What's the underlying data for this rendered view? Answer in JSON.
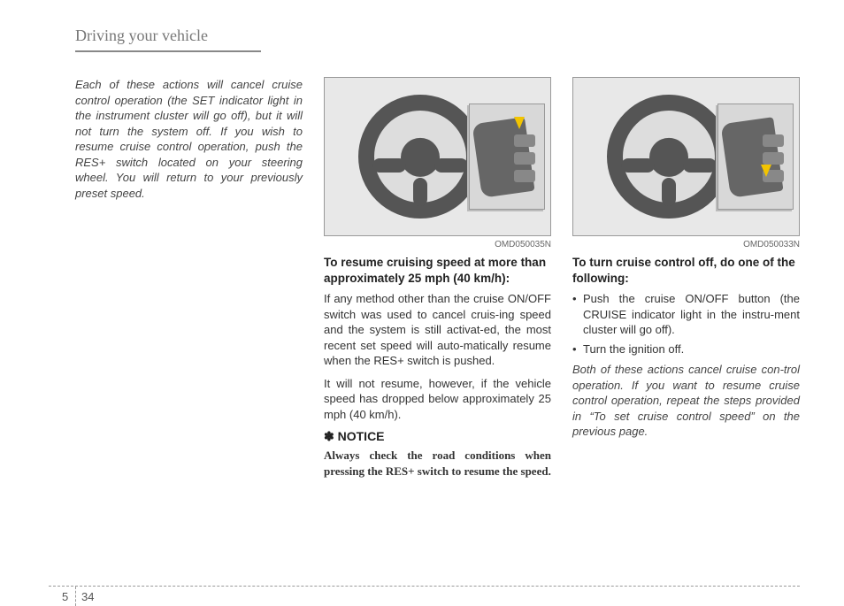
{
  "header": {
    "title": "Driving your vehicle"
  },
  "col1": {
    "intro": "Each of these actions will cancel cruise control operation (the SET indicator light in the instrument cluster will go off), but it will not turn the system off. If you wish to resume cruise control operation, push the RES+ switch located on your steering wheel. You will return to your previously preset speed."
  },
  "col2": {
    "figure_caption": "OMD050035N",
    "heading": "To resume cruising speed at more than approximately 25 mph (40 km/h):",
    "para1": "If any method other than the cruise ON/OFF switch was used to cancel cruis-ing speed and the system is still activat-ed, the most recent set speed will auto-matically resume when the RES+ switch is pushed.",
    "para2": "It will not resume, however, if the vehicle speed has dropped below approximately 25 mph (40 km/h).",
    "notice_label": "NOTICE",
    "notice_body": "Always check the road conditions when pressing the RES+ switch to resume the speed."
  },
  "col3": {
    "figure_caption": "OMD050033N",
    "heading": "To turn cruise control off, do one of the following:",
    "bullet1": "Push the cruise ON/OFF button (the CRUISE indicator light in the instru-ment cluster will go off).",
    "bullet2": "Turn the ignition off.",
    "closing": "Both of these actions cancel cruise con-trol operation. If you want to resume cruise control operation, repeat the steps provided in “To set cruise control speed” on the previous page."
  },
  "footer": {
    "chapter": "5",
    "page": "34"
  }
}
